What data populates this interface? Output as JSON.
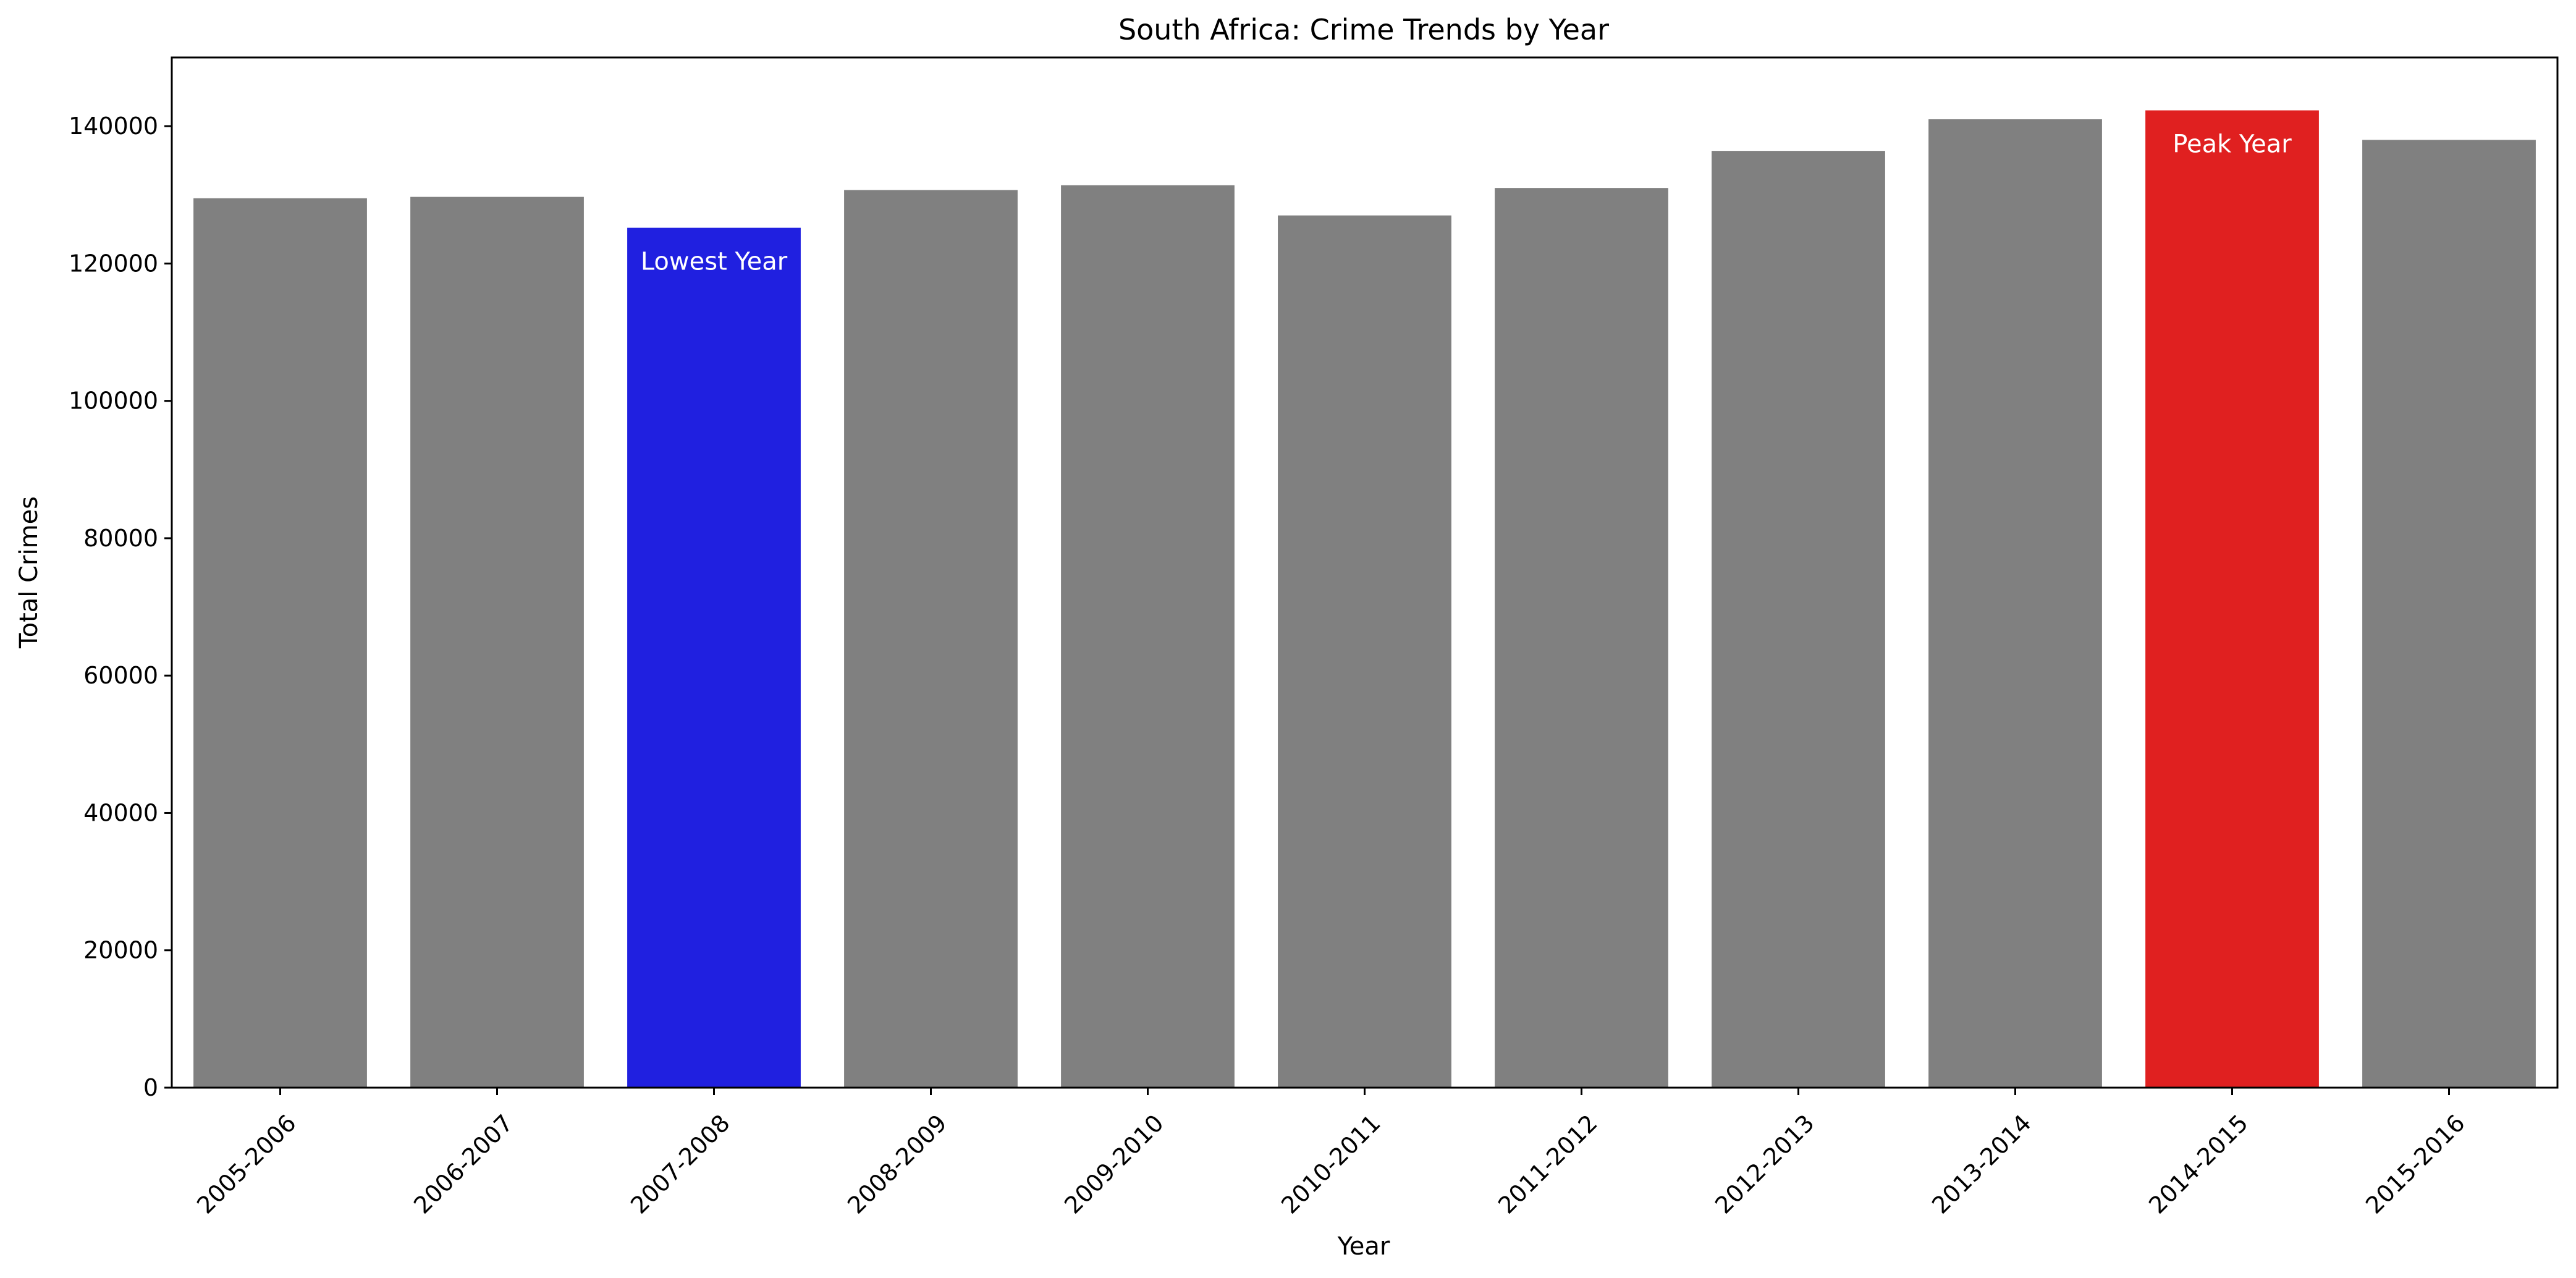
{
  "chart_data": {
    "type": "bar",
    "title": "South Africa: Crime Trends by Year",
    "xlabel": "Year",
    "ylabel": "Total Crimes",
    "categories": [
      "2005-2006",
      "2006-2007",
      "2007-2008",
      "2008-2009",
      "2009-2010",
      "2010-2011",
      "2011-2012",
      "2012-2013",
      "2013-2014",
      "2014-2015",
      "2015-2016"
    ],
    "values": [
      129500,
      129700,
      125200,
      130700,
      131400,
      127000,
      131000,
      136400,
      141000,
      142300,
      138000
    ],
    "ylim": [
      0,
      150000
    ],
    "yticks": [
      0,
      20000,
      40000,
      60000,
      80000,
      100000,
      120000,
      140000
    ],
    "ytick_labels": [
      "0",
      "20000",
      "40000",
      "60000",
      "80000",
      "100000",
      "120000",
      "140000"
    ],
    "grid": false,
    "legend": false,
    "colors": {
      "default_bar": "#808080",
      "lowest_bar": "#2020e0",
      "peak_bar": "#e02020"
    },
    "annotations": [
      {
        "category": "2007-2008",
        "text": "Lowest Year",
        "role": "lowest"
      },
      {
        "category": "2014-2015",
        "text": "Peak Year",
        "role": "peak"
      }
    ]
  }
}
